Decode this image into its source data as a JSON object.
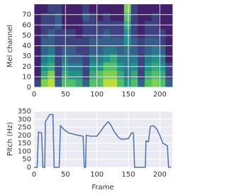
{
  "chart_data": [
    {
      "type": "heatmap",
      "ylabel": "Mel channel",
      "colormap": "viridis",
      "grid": true,
      "xlim": [
        0,
        220
      ],
      "ylim": [
        0,
        80
      ],
      "xticks": [
        0,
        50,
        100,
        150,
        200
      ],
      "yticks": [
        0,
        10,
        20,
        30,
        40,
        50,
        60,
        70
      ],
      "z": [
        [
          0.2,
          0.8,
          0.9,
          0.3,
          0.7,
          0.7,
          0.6,
          0.3,
          0.7,
          0.7,
          0.9,
          0.9,
          0.7,
          0.5,
          0.7,
          0.3,
          0.7,
          0.8,
          0.7,
          0.3
        ],
        [
          0.1,
          0.6,
          0.8,
          0.2,
          0.6,
          0.5,
          0.5,
          0.2,
          0.6,
          0.7,
          0.8,
          0.8,
          0.6,
          0.4,
          0.6,
          0.2,
          0.6,
          0.7,
          0.6,
          0.2
        ],
        [
          0.1,
          0.5,
          0.6,
          0.2,
          0.5,
          0.4,
          0.4,
          0.2,
          0.5,
          0.5,
          0.7,
          0.7,
          0.5,
          0.4,
          0.5,
          0.2,
          0.5,
          0.6,
          0.5,
          0.2
        ],
        [
          0.1,
          0.4,
          0.5,
          0.2,
          0.4,
          0.3,
          0.3,
          0.2,
          0.4,
          0.4,
          0.5,
          0.6,
          0.4,
          0.4,
          0.4,
          0.2,
          0.4,
          0.5,
          0.4,
          0.1
        ],
        [
          0.1,
          0.3,
          0.4,
          0.2,
          0.3,
          0.3,
          0.2,
          0.2,
          0.3,
          0.3,
          0.4,
          0.4,
          0.3,
          0.4,
          0.3,
          0.2,
          0.3,
          0.4,
          0.3,
          0.1
        ],
        [
          0.1,
          0.3,
          0.3,
          0.2,
          0.2,
          0.2,
          0.2,
          0.2,
          0.3,
          0.3,
          0.3,
          0.3,
          0.3,
          0.5,
          0.3,
          0.2,
          0.3,
          0.3,
          0.2,
          0.1
        ],
        [
          0.1,
          0.2,
          0.3,
          0.2,
          0.2,
          0.2,
          0.1,
          0.2,
          0.2,
          0.2,
          0.3,
          0.2,
          0.2,
          0.5,
          0.2,
          0.1,
          0.2,
          0.2,
          0.2,
          0.1
        ],
        [
          0.1,
          0.2,
          0.2,
          0.3,
          0.1,
          0.1,
          0.1,
          0.2,
          0.2,
          0.2,
          0.2,
          0.2,
          0.2,
          0.6,
          0.2,
          0.1,
          0.2,
          0.2,
          0.1,
          0.1
        ],
        [
          0.1,
          0.2,
          0.2,
          0.3,
          0.1,
          0.1,
          0.1,
          0.3,
          0.2,
          0.1,
          0.2,
          0.1,
          0.1,
          0.7,
          0.2,
          0.1,
          0.1,
          0.2,
          0.1,
          0.1
        ],
        [
          0.1,
          0.1,
          0.2,
          0.2,
          0.1,
          0.1,
          0.1,
          0.2,
          0.1,
          0.1,
          0.1,
          0.1,
          0.1,
          0.8,
          0.2,
          0.1,
          0.1,
          0.1,
          0.1,
          0.1
        ]
      ]
    },
    {
      "type": "line",
      "xlabel": "Frame",
      "ylabel": "Pitch (Hz)",
      "color": "#4c72b0",
      "grid": true,
      "xlim": [
        0,
        220
      ],
      "ylim": [
        0,
        350
      ],
      "xticks": [
        0,
        50,
        100,
        150,
        200
      ],
      "yticks": [
        0,
        50,
        100,
        150,
        200,
        250,
        300,
        350
      ],
      "x": [
        0,
        5,
        7,
        12,
        14,
        17,
        18,
        22,
        25,
        30,
        32,
        40,
        42,
        48,
        55,
        70,
        78,
        80,
        82,
        83,
        90,
        100,
        105,
        112,
        118,
        122,
        128,
        135,
        140,
        150,
        155,
        158,
        160,
        177,
        178,
        182,
        185,
        190,
        195,
        200,
        205,
        210,
        212,
        214,
        218
      ],
      "values": [
        0,
        0,
        220,
        215,
        0,
        0,
        285,
        310,
        330,
        330,
        0,
        0,
        260,
        235,
        215,
        200,
        195,
        0,
        0,
        200,
        195,
        195,
        220,
        260,
        285,
        265,
        220,
        185,
        175,
        180,
        215,
        215,
        0,
        0,
        165,
        160,
        255,
        260,
        240,
        200,
        150,
        140,
        135,
        0,
        0
      ]
    }
  ]
}
